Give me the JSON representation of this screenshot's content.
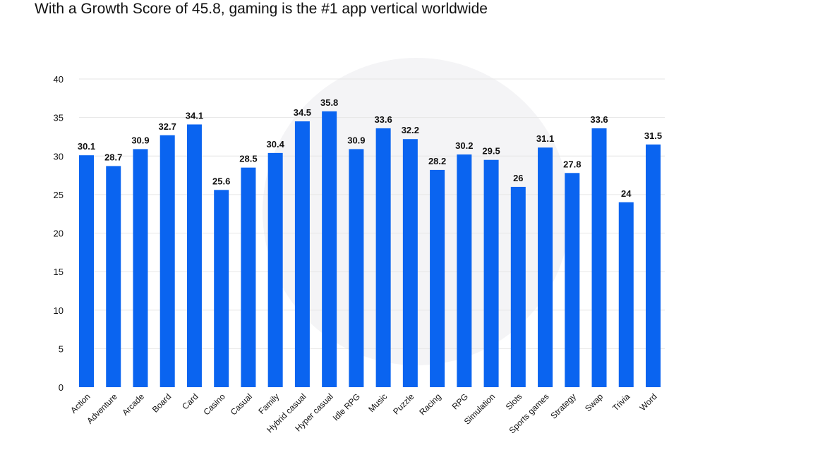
{
  "title": "With a Growth Score of 45.8, gaming is the #1 app vertical worldwide",
  "colors": {
    "bar": "#0a64f0",
    "grid": "#e6e6e6",
    "watermark": "#f4f4f6"
  },
  "chart_data": {
    "type": "bar",
    "title": "With a Growth Score of 45.8, gaming is the #1 app vertical worldwide",
    "xlabel": "",
    "ylabel": "",
    "ylim": [
      0,
      40
    ],
    "yticks": [
      0,
      5,
      10,
      15,
      20,
      25,
      30,
      35,
      40
    ],
    "grid": true,
    "categories": [
      "Action",
      "Adventure",
      "Arcade",
      "Board",
      "Card",
      "Casino",
      "Casual",
      "Family",
      "Hybrid casual",
      "Hyper casual",
      "Idle RPG",
      "Music",
      "Puzzle",
      "Racing",
      "RPG",
      "Simulation",
      "Slots",
      "Sports games",
      "Strategy",
      "Swap",
      "Trivia",
      "Word"
    ],
    "values": [
      30.1,
      28.7,
      30.9,
      32.7,
      34.1,
      25.6,
      28.5,
      30.4,
      34.5,
      35.8,
      30.9,
      33.6,
      32.2,
      28.2,
      30.2,
      29.5,
      26,
      31.1,
      27.8,
      33.6,
      24,
      31.5
    ],
    "value_labels": [
      "30.1",
      "28.7",
      "30.9",
      "32.7",
      "34.1",
      "25.6",
      "28.5",
      "30.4",
      "34.5",
      "35.8",
      "30.9",
      "33.6",
      "32.2",
      "28.2",
      "30.2",
      "29.5",
      "26",
      "31.1",
      "27.8",
      "33.6",
      "24",
      "31.5"
    ]
  }
}
